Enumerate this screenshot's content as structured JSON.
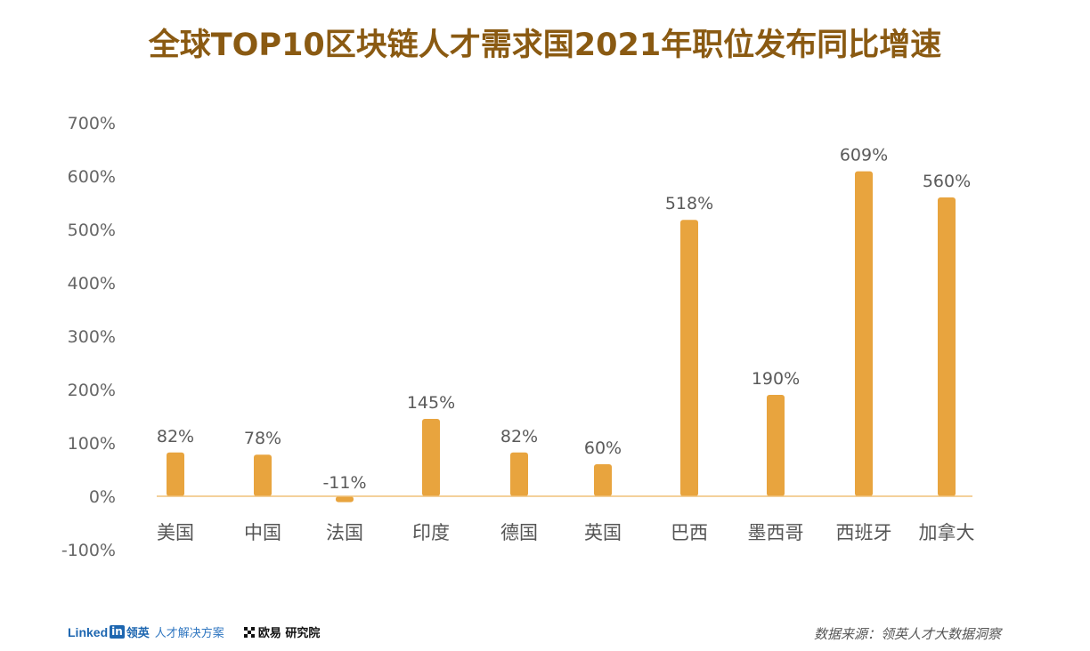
{
  "chart_data": {
    "type": "bar",
    "title": "全球TOP10区块链人才需求国2021年职位发布同比增速",
    "categories": [
      "美国",
      "中国",
      "法国",
      "印度",
      "德国",
      "英国",
      "巴西",
      "墨西哥",
      "西班牙",
      "加拿大"
    ],
    "values": [
      82,
      78,
      -11,
      145,
      82,
      60,
      518,
      190,
      609,
      560
    ],
    "data_labels": [
      "82%",
      "78%",
      "-11%",
      "145%",
      "82%",
      "60%",
      "518%",
      "190%",
      "609%",
      "560%"
    ],
    "ylim": [
      -100,
      700
    ],
    "yticks": [
      700,
      600,
      500,
      400,
      300,
      200,
      100,
      0,
      -100
    ],
    "ytick_labels": [
      "700%",
      "600%",
      "500%",
      "400%",
      "300%",
      "200%",
      "100%",
      "0%",
      "-100%"
    ],
    "xlabel": "",
    "ylabel": "",
    "grid": false,
    "legend": "none",
    "bar_color": "#e8a43e",
    "axis_color": "#f0c27a",
    "title_color": "#8a5a12"
  },
  "footer": {
    "linkedin_word": "Linked",
    "linkedin_in": "in",
    "linkedin_cn": "领英",
    "linkedin_sub": "人才解决方案",
    "okx_label": "欧易 研究院",
    "source": "数据来源：领英人才大数据洞察"
  }
}
